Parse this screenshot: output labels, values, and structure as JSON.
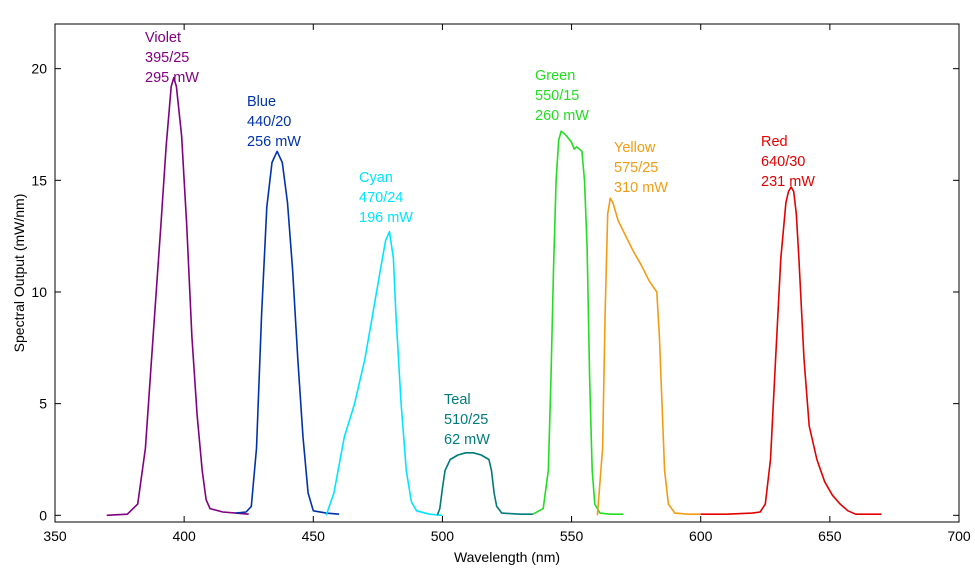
{
  "chart_data": {
    "type": "line",
    "title": "",
    "xlabel": "Wavelength (nm)",
    "ylabel": "Spectral Output (mW/nm)",
    "xlim": [
      350,
      700
    ],
    "ylim": [
      -0.3,
      22
    ],
    "xticks": [
      350,
      400,
      450,
      500,
      550,
      600,
      650,
      700
    ],
    "yticks": [
      0,
      5,
      10,
      15,
      20
    ],
    "grid": false,
    "series": [
      {
        "name": "Violet",
        "filter": "395/25",
        "power": "295 mW",
        "color": "#800080",
        "points": [
          [
            370,
            0
          ],
          [
            378,
            0.05
          ],
          [
            382,
            0.5
          ],
          [
            385,
            3
          ],
          [
            388,
            8
          ],
          [
            391,
            13
          ],
          [
            393,
            16.5
          ],
          [
            395,
            19.2
          ],
          [
            396,
            19.6
          ],
          [
            397,
            19.2
          ],
          [
            399,
            17
          ],
          [
            401,
            13
          ],
          [
            403,
            8
          ],
          [
            405,
            4.5
          ],
          [
            407,
            2
          ],
          [
            408.5,
            0.7
          ],
          [
            410,
            0.3
          ],
          [
            415,
            0.15
          ],
          [
            420,
            0.1
          ],
          [
            425,
            0.05
          ]
        ]
      },
      {
        "name": "Blue",
        "filter": "440/20",
        "power": "256 mW",
        "color": "#0033aa",
        "points": [
          [
            420,
            0.1
          ],
          [
            424,
            0.15
          ],
          [
            426,
            0.4
          ],
          [
            428,
            3
          ],
          [
            430,
            9
          ],
          [
            432,
            13.8
          ],
          [
            434,
            15.8
          ],
          [
            436,
            16.3
          ],
          [
            438,
            15.8
          ],
          [
            440,
            14
          ],
          [
            442,
            11
          ],
          [
            444,
            7
          ],
          [
            446,
            3.5
          ],
          [
            448,
            1
          ],
          [
            450,
            0.2
          ],
          [
            455,
            0.1
          ],
          [
            460,
            0.05
          ]
        ]
      },
      {
        "name": "Cyan",
        "filter": "470/24",
        "power": "196 mW",
        "color": "#00e5ff",
        "points": [
          [
            455,
            0
          ],
          [
            458,
            1
          ],
          [
            462,
            3.5
          ],
          [
            466,
            5
          ],
          [
            470,
            7
          ],
          [
            473,
            9
          ],
          [
            476,
            11
          ],
          [
            478,
            12.3
          ],
          [
            479.5,
            12.7
          ],
          [
            481,
            11.5
          ],
          [
            482,
            9
          ],
          [
            484,
            5
          ],
          [
            486,
            2
          ],
          [
            488,
            0.6
          ],
          [
            490,
            0.2
          ],
          [
            495,
            0.05
          ],
          [
            500,
            0
          ]
        ]
      },
      {
        "name": "Teal",
        "filter": "510/25",
        "power": "62 mW",
        "color": "#007a7a",
        "points": [
          [
            498,
            0
          ],
          [
            499,
            0.3
          ],
          [
            500,
            1.2
          ],
          [
            501,
            2
          ],
          [
            503,
            2.5
          ],
          [
            506,
            2.7
          ],
          [
            509,
            2.8
          ],
          [
            512,
            2.8
          ],
          [
            515,
            2.7
          ],
          [
            518,
            2.5
          ],
          [
            519,
            2
          ],
          [
            520,
            1
          ],
          [
            521,
            0.4
          ],
          [
            523,
            0.1
          ],
          [
            530,
            0.05
          ],
          [
            535,
            0.05
          ]
        ]
      },
      {
        "name": "Green",
        "filter": "550/15",
        "power": "260 mW",
        "color": "#22dd22",
        "points": [
          [
            535,
            0.05
          ],
          [
            539,
            0.3
          ],
          [
            541,
            2
          ],
          [
            542,
            6
          ],
          [
            543,
            11
          ],
          [
            544,
            15
          ],
          [
            545,
            16.8
          ],
          [
            546,
            17.2
          ],
          [
            548,
            17
          ],
          [
            550,
            16.7
          ],
          [
            551,
            16.4
          ],
          [
            552,
            16.5
          ],
          [
            554,
            16.3
          ],
          [
            555,
            15
          ],
          [
            556,
            12
          ],
          [
            557,
            6
          ],
          [
            558,
            2
          ],
          [
            559,
            0.5
          ],
          [
            561,
            0.1
          ],
          [
            565,
            0.05
          ],
          [
            570,
            0.05
          ]
        ]
      },
      {
        "name": "Yellow",
        "filter": "575/25",
        "power": "310 mW",
        "color": "#f39c12",
        "points": [
          [
            560,
            0
          ],
          [
            562,
            3
          ],
          [
            563,
            9
          ],
          [
            564,
            13.5
          ],
          [
            565,
            14.2
          ],
          [
            566,
            14
          ],
          [
            568,
            13.2
          ],
          [
            571,
            12.5
          ],
          [
            574,
            11.8
          ],
          [
            577,
            11.2
          ],
          [
            580,
            10.5
          ],
          [
            583,
            10
          ],
          [
            584,
            8
          ],
          [
            585,
            5
          ],
          [
            586,
            2
          ],
          [
            587.5,
            0.5
          ],
          [
            590,
            0.1
          ],
          [
            595,
            0.05
          ],
          [
            600,
            0.05
          ]
        ]
      },
      {
        "name": "Red",
        "filter": "640/30",
        "power": "231 mW",
        "color": "#e30000",
        "points": [
          [
            600,
            0.05
          ],
          [
            610,
            0.05
          ],
          [
            620,
            0.1
          ],
          [
            623,
            0.15
          ],
          [
            625,
            0.5
          ],
          [
            627,
            2.5
          ],
          [
            629,
            7
          ],
          [
            631,
            11.5
          ],
          [
            633,
            14
          ],
          [
            634,
            14.5
          ],
          [
            635,
            14.7
          ],
          [
            636,
            14.5
          ],
          [
            637,
            13.5
          ],
          [
            638,
            11.5
          ],
          [
            640,
            7
          ],
          [
            642,
            4
          ],
          [
            645,
            2.5
          ],
          [
            648,
            1.5
          ],
          [
            651,
            0.9
          ],
          [
            654,
            0.5
          ],
          [
            657,
            0.2
          ],
          [
            660,
            0.05
          ],
          [
            670,
            0.05
          ]
        ]
      }
    ]
  }
}
